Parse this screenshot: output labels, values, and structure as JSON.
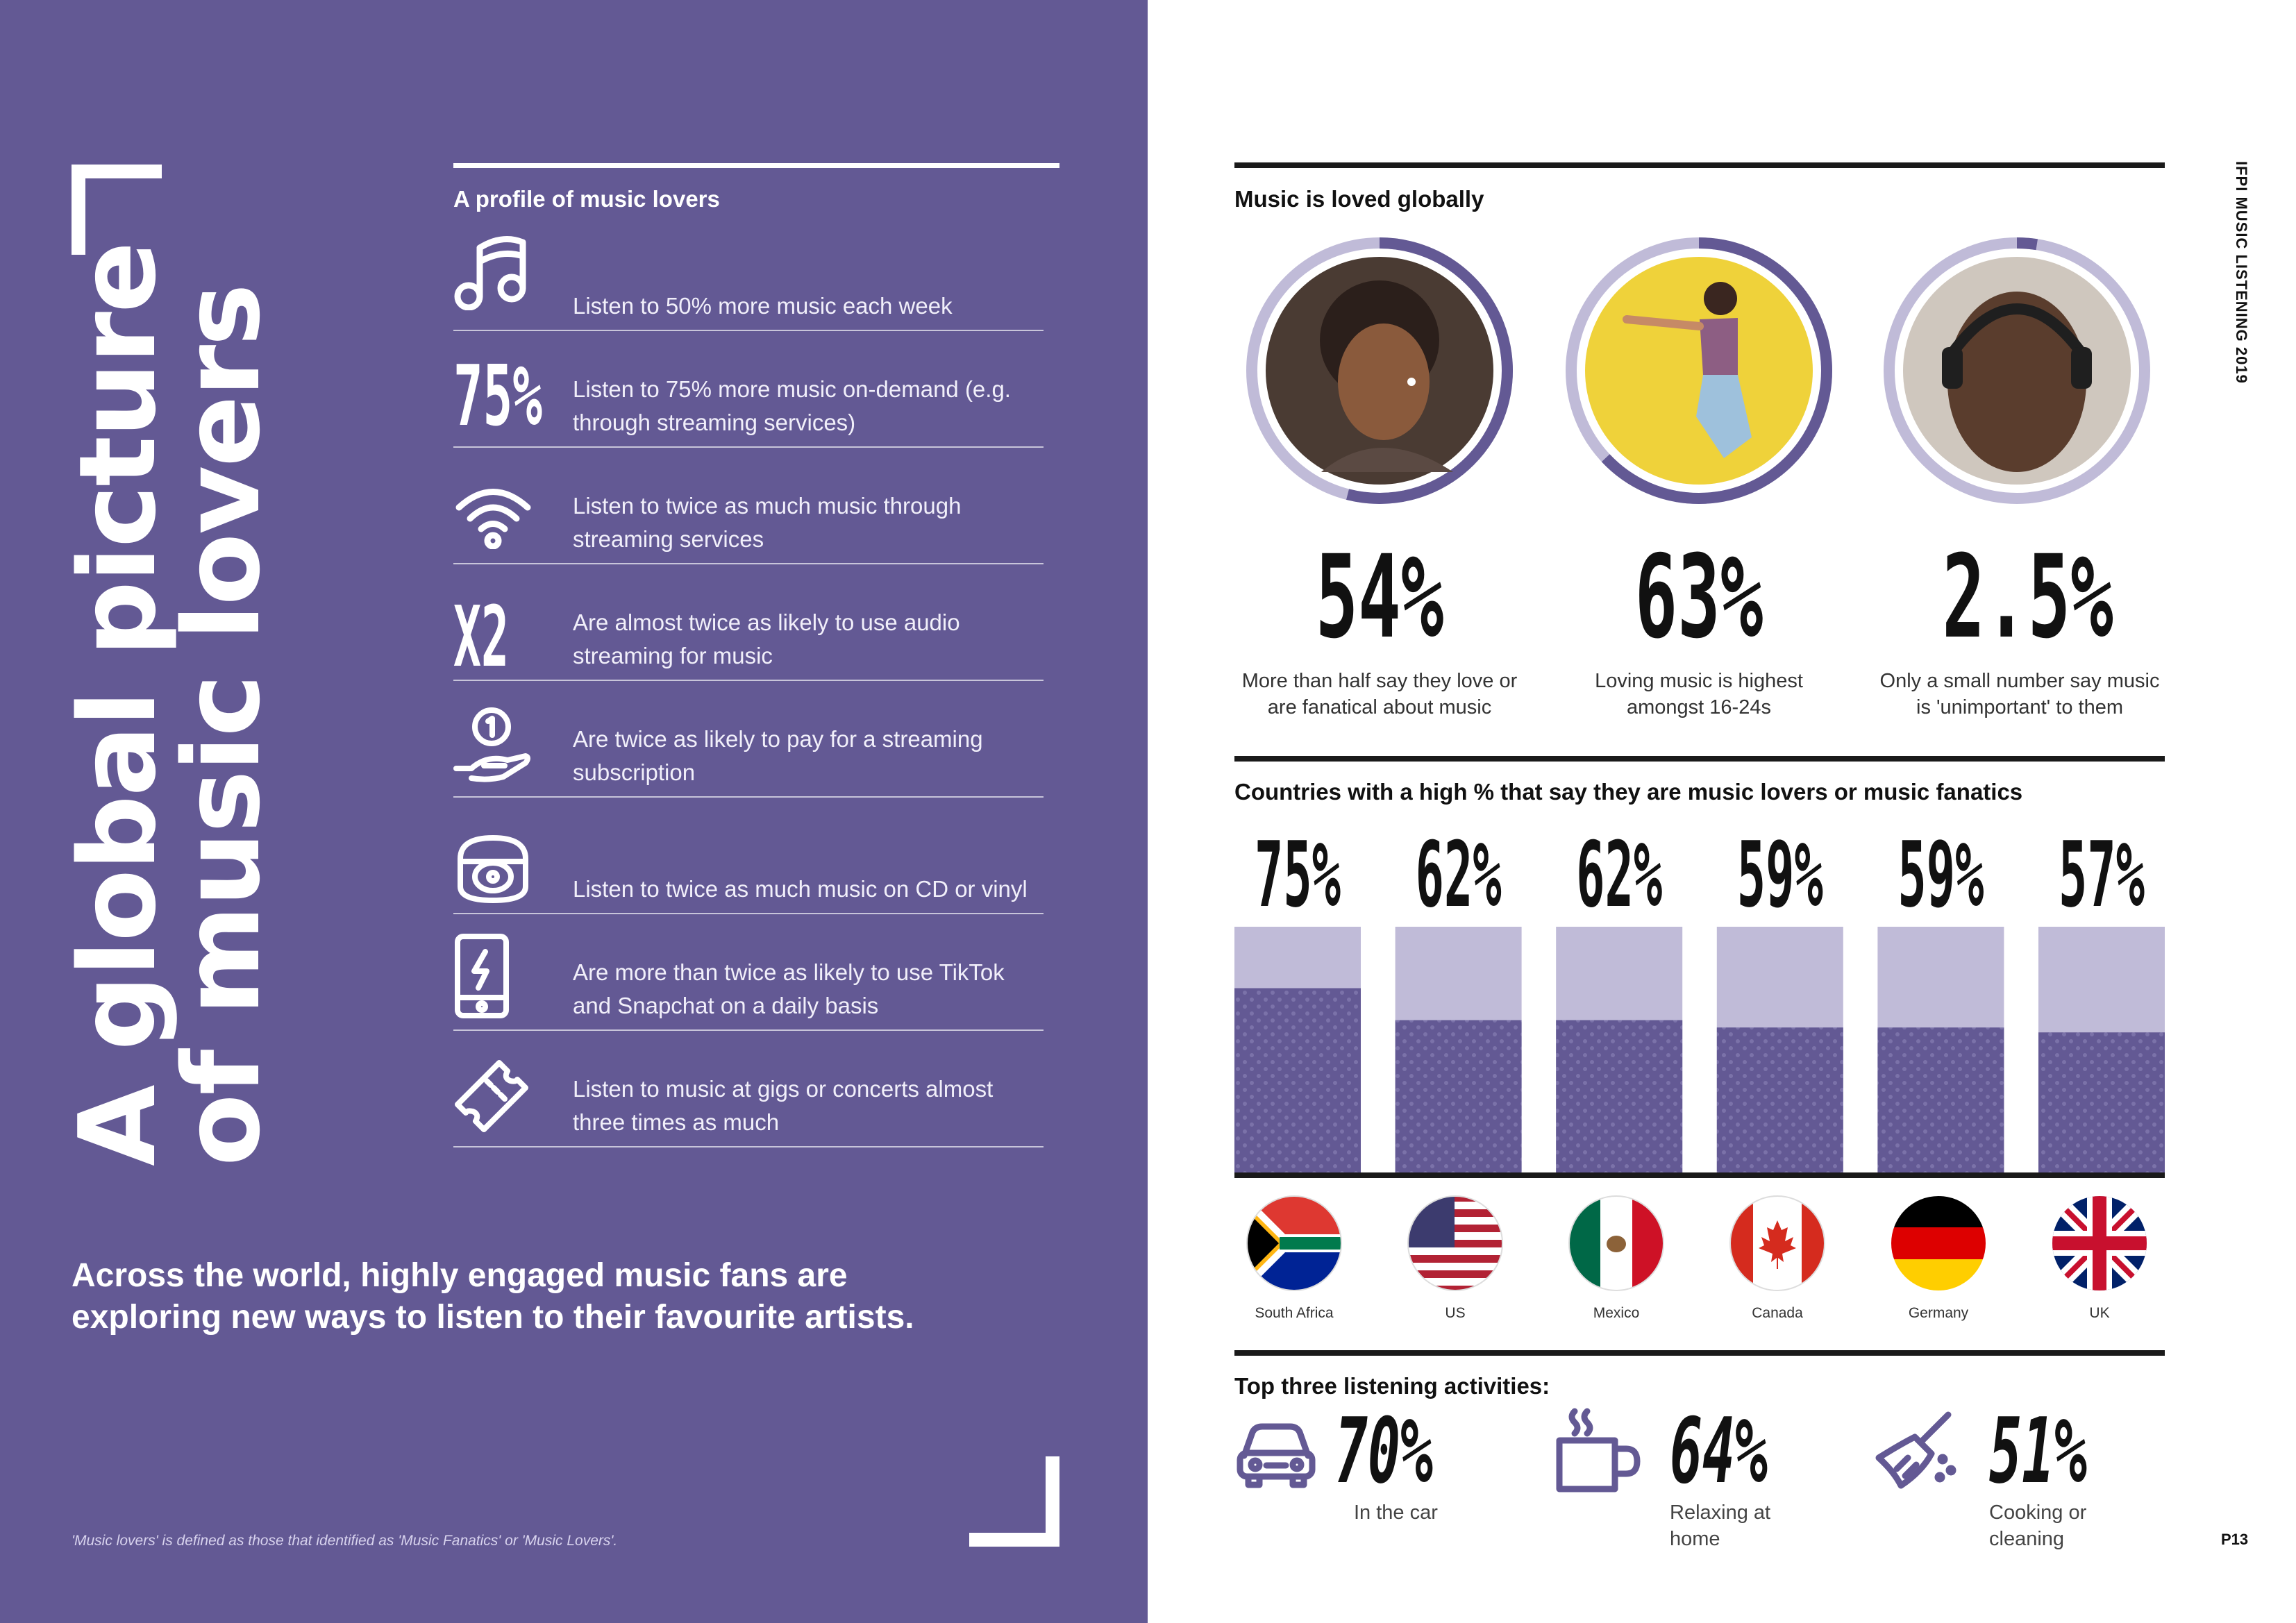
{
  "left": {
    "title_line1": "A global picture",
    "title_line2": "of music lovers",
    "profile_title": "A profile of music lovers",
    "profile_items": [
      {
        "icon": "music-note-icon",
        "text": "Listen to 50% more music each week"
      },
      {
        "icon": "75-percent-icon",
        "icon_text": "75%",
        "text": "Listen to 75% more music on-demand (e.g. through streaming services)"
      },
      {
        "icon": "wifi-icon",
        "text": "Listen to twice as much music through streaming services"
      },
      {
        "icon": "x2-icon",
        "icon_text": "X2",
        "text": "Are almost twice as likely to use audio streaming for music"
      },
      {
        "icon": "hand-coin-icon",
        "text": "Are twice as likely to pay for a streaming subscription"
      },
      {
        "icon": "cd-vinyl-player-icon",
        "text": "Listen to twice as much music on CD or vinyl"
      },
      {
        "icon": "phone-lightning-icon",
        "text": "Are more than twice as likely to use TikTok and Snapchat on a daily basis"
      },
      {
        "icon": "ticket-icon",
        "text": "Listen to music at gigs or concerts almost three times as much"
      }
    ],
    "summary": "Across the world, highly engaged music fans are exploring new ways to listen to their favourite artists.",
    "footnote": "'Music lovers' is defined as those that identified as 'Music Fanatics' or 'Music Lovers'."
  },
  "right": {
    "side_label": "IFPI MUSIC LISTENING 2019",
    "page_number": "P13",
    "loved_title": "Music is loved globally",
    "loved_stats": [
      {
        "value": "54%",
        "caption": "More than half say they love or are fanatical about music",
        "ring_fraction": 0.54,
        "photo": "woman-earbuds-photo"
      },
      {
        "value": "63%",
        "caption": "Loving music is highest amongst 16-24s",
        "ring_fraction": 0.63,
        "photo": "woman-jumping-headphones-photo"
      },
      {
        "value": "2.5%",
        "caption": "Only a small number say music is 'unimportant' to them",
        "ring_fraction": 0.025,
        "photo": "woman-headphones-back-photo"
      }
    ],
    "countries_title": "Countries with a high % that say they are music lovers or music fanatics",
    "countries": [
      {
        "name": "South Africa",
        "value": "75%",
        "fraction": 0.75,
        "flag": "south-africa-flag"
      },
      {
        "name": "US",
        "value": "62%",
        "fraction": 0.62,
        "flag": "us-flag"
      },
      {
        "name": "Mexico",
        "value": "62%",
        "fraction": 0.62,
        "flag": "mexico-flag"
      },
      {
        "name": "Canada",
        "value": "59%",
        "fraction": 0.59,
        "flag": "canada-flag"
      },
      {
        "name": "Germany",
        "value": "59%",
        "fraction": 0.59,
        "flag": "germany-flag"
      },
      {
        "name": "UK",
        "value": "57%",
        "fraction": 0.57,
        "flag": "uk-flag"
      }
    ],
    "activities_title": "Top three listening activities:",
    "activities": [
      {
        "icon": "car-icon",
        "value": "70%",
        "label_line1": "In the car",
        "label_line2": ""
      },
      {
        "icon": "coffee-cup-icon",
        "value": "64%",
        "label_line1": "Relaxing at",
        "label_line2": "home"
      },
      {
        "icon": "broom-icon",
        "value": "51%",
        "label_line1": "Cooking or",
        "label_line2": "cleaning"
      }
    ]
  },
  "colors": {
    "purple": "#635994",
    "purple_light": "#c0bbd8",
    "dark": "#1a1a1a",
    "white": "#ffffff"
  }
}
